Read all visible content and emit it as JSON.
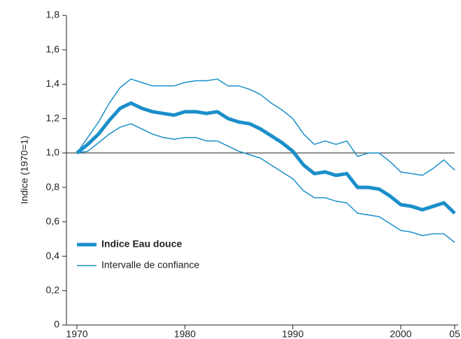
{
  "chart_data": {
    "type": "line",
    "y_label": "Indice (1970=1)",
    "x": [
      1970,
      1971,
      1972,
      1973,
      1974,
      1975,
      1976,
      1977,
      1978,
      1979,
      1980,
      1981,
      1982,
      1983,
      1984,
      1985,
      1986,
      1987,
      1988,
      1989,
      1990,
      1991,
      1992,
      1993,
      1994,
      1995,
      1996,
      1997,
      1998,
      1999,
      2000,
      2001,
      2002,
      2003,
      2004,
      2005
    ],
    "series": [
      {
        "name": "Indice Eau douce",
        "color": "#1a8fc9",
        "width": 5,
        "values": [
          1.0,
          1.05,
          1.11,
          1.19,
          1.26,
          1.29,
          1.26,
          1.24,
          1.23,
          1.22,
          1.24,
          1.24,
          1.23,
          1.24,
          1.2,
          1.18,
          1.17,
          1.14,
          1.1,
          1.06,
          1.01,
          0.93,
          0.88,
          0.89,
          0.87,
          0.88,
          0.8,
          0.8,
          0.79,
          0.75,
          0.7,
          0.69,
          0.67,
          0.69,
          0.71,
          0.65
        ]
      },
      {
        "name": "Intervalle de confiance",
        "color": "#1a8fc9",
        "width": 1.5,
        "values": [
          1.0,
          1.09,
          1.18,
          1.29,
          1.38,
          1.43,
          1.41,
          1.39,
          1.39,
          1.39,
          1.41,
          1.42,
          1.42,
          1.43,
          1.39,
          1.39,
          1.37,
          1.34,
          1.29,
          1.25,
          1.2,
          1.11,
          1.05,
          1.07,
          1.05,
          1.07,
          0.98,
          1.0,
          1.0,
          0.95,
          0.89,
          0.88,
          0.87,
          0.91,
          0.96,
          0.9
        ]
      },
      {
        "color": "#1a8fc9",
        "width": 1.5,
        "values": [
          1.0,
          1.01,
          1.06,
          1.11,
          1.15,
          1.17,
          1.14,
          1.11,
          1.09,
          1.08,
          1.09,
          1.09,
          1.07,
          1.07,
          1.04,
          1.01,
          0.99,
          0.97,
          0.93,
          0.89,
          0.85,
          0.78,
          0.74,
          0.74,
          0.72,
          0.71,
          0.65,
          0.64,
          0.63,
          0.59,
          0.55,
          0.54,
          0.52,
          0.53,
          0.53,
          0.48
        ]
      }
    ],
    "reference_line": 1,
    "xlim": [
      1970,
      2005
    ],
    "xticks": [
      1970,
      1980,
      1990,
      2000,
      {
        "value": 2005,
        "label": "05"
      }
    ],
    "ylim": [
      0,
      1.8
    ],
    "yticks": [
      0,
      {
        "value": 0.2,
        "label": "0,2"
      },
      {
        "value": 0.4,
        "label": "0,4"
      },
      {
        "value": 0.6,
        "label": "0,6"
      },
      {
        "value": 0.8,
        "label": "0,8"
      },
      {
        "value": 1,
        "label": "1,0"
      },
      {
        "value": 1.2,
        "label": "1,2"
      },
      {
        "value": 1.4,
        "label": "1,4"
      },
      {
        "value": 1.6,
        "label": "1,6"
      },
      {
        "value": 1.8,
        "label": "1,8"
      }
    ],
    "legend": "lower left",
    "grid": false
  }
}
